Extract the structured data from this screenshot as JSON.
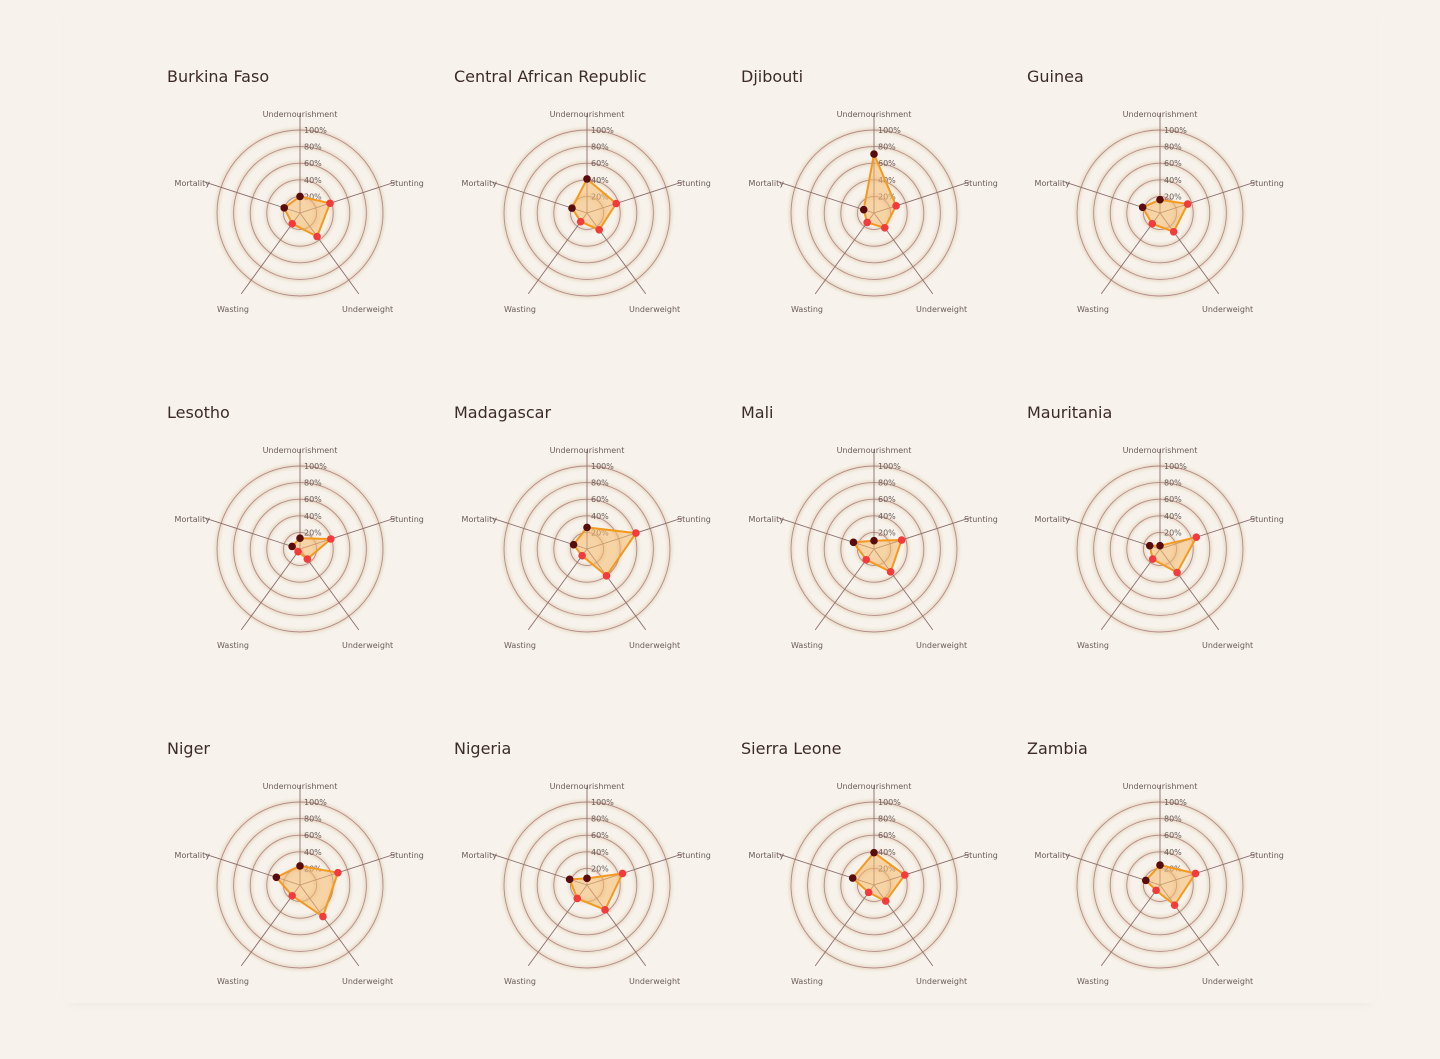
{
  "chart_data": [
    {
      "type": "radar",
      "title": "Burkina Faso",
      "axes": [
        "Undernourishment",
        "Stunting",
        "Underweight",
        "Wasting",
        "Mortality"
      ],
      "ticks": [
        "20%",
        "40%",
        "60%",
        "80%",
        "100%"
      ],
      "rlim": [
        0,
        100
      ],
      "values": [
        20,
        38,
        35,
        16,
        20
      ]
    },
    {
      "type": "radar",
      "title": "Central African Republic",
      "axes": [
        "Undernourishment",
        "Stunting",
        "Underweight",
        "Wasting",
        "Mortality"
      ],
      "ticks": [
        "20%",
        "40%",
        "60%",
        "80%",
        "100%"
      ],
      "rlim": [
        0,
        100
      ],
      "values": [
        41,
        37,
        25,
        13,
        19
      ]
    },
    {
      "type": "radar",
      "title": "Djibouti",
      "axes": [
        "Undernourishment",
        "Stunting",
        "Underweight",
        "Wasting",
        "Mortality"
      ],
      "ticks": [
        "20%",
        "40%",
        "60%",
        "80%",
        "100%"
      ],
      "rlim": [
        0,
        100
      ],
      "values": [
        71,
        28,
        22,
        14,
        13
      ]
    },
    {
      "type": "radar",
      "title": "Guinea",
      "axes": [
        "Undernourishment",
        "Stunting",
        "Underweight",
        "Wasting",
        "Mortality"
      ],
      "ticks": [
        "20%",
        "40%",
        "60%",
        "80%",
        "100%"
      ],
      "rlim": [
        0,
        100
      ],
      "values": [
        16,
        35,
        28,
        16,
        22
      ]
    },
    {
      "type": "radar",
      "title": "Lesotho",
      "axes": [
        "Undernourishment",
        "Stunting",
        "Underweight",
        "Wasting",
        "Mortality"
      ],
      "ticks": [
        "20%",
        "40%",
        "60%",
        "80%",
        "100%"
      ],
      "rlim": [
        0,
        100
      ],
      "values": [
        13,
        39,
        15,
        4,
        10
      ]
    },
    {
      "type": "radar",
      "title": "Madagascar",
      "axes": [
        "Undernourishment",
        "Stunting",
        "Underweight",
        "Wasting",
        "Mortality"
      ],
      "ticks": [
        "20%",
        "40%",
        "60%",
        "80%",
        "100%"
      ],
      "rlim": [
        0,
        100
      ],
      "values": [
        26,
        62,
        40,
        10,
        17
      ]
    },
    {
      "type": "radar",
      "title": "Mali",
      "axes": [
        "Undernourishment",
        "Stunting",
        "Underweight",
        "Wasting",
        "Mortality"
      ],
      "ticks": [
        "20%",
        "40%",
        "60%",
        "80%",
        "100%"
      ],
      "rlim": [
        0,
        100
      ],
      "values": [
        10,
        35,
        34,
        16,
        26
      ]
    },
    {
      "type": "radar",
      "title": "Mauritania",
      "axes": [
        "Undernourishment",
        "Stunting",
        "Underweight",
        "Wasting",
        "Mortality"
      ],
      "ticks": [
        "20%",
        "40%",
        "60%",
        "80%",
        "100%"
      ],
      "rlim": [
        0,
        100
      ],
      "values": [
        4,
        46,
        35,
        15,
        13
      ]
    },
    {
      "type": "radar",
      "title": "Niger",
      "axes": [
        "Undernourishment",
        "Stunting",
        "Underweight",
        "Wasting",
        "Mortality"
      ],
      "ticks": [
        "20%",
        "40%",
        "60%",
        "80%",
        "100%"
      ],
      "rlim": [
        0,
        100
      ],
      "values": [
        23,
        48,
        47,
        16,
        30
      ]
    },
    {
      "type": "radar",
      "title": "Nigeria",
      "axes": [
        "Undernourishment",
        "Stunting",
        "Underweight",
        "Wasting",
        "Mortality"
      ],
      "ticks": [
        "20%",
        "40%",
        "60%",
        "80%",
        "100%"
      ],
      "rlim": [
        0,
        100
      ],
      "values": [
        8,
        45,
        37,
        20,
        22
      ]
    },
    {
      "type": "radar",
      "title": "Sierra Leone",
      "axes": [
        "Undernourishment",
        "Stunting",
        "Underweight",
        "Wasting",
        "Mortality"
      ],
      "ticks": [
        "20%",
        "40%",
        "60%",
        "80%",
        "100%"
      ],
      "rlim": [
        0,
        100
      ],
      "values": [
        39,
        39,
        24,
        11,
        27
      ]
    },
    {
      "type": "radar",
      "title": "Zambia",
      "axes": [
        "Undernourishment",
        "Stunting",
        "Underweight",
        "Wasting",
        "Mortality"
      ],
      "ticks": [
        "20%",
        "40%",
        "60%",
        "80%",
        "100%"
      ],
      "rlim": [
        0,
        100
      ],
      "values": [
        24,
        45,
        30,
        8,
        18
      ]
    }
  ],
  "colors": {
    "polygon_stroke": "#f39a1e",
    "polygon_fill": "#f5b96b",
    "marker_dark": "#5a0b0b",
    "marker_red": "#f33b3b",
    "grid_ring": "#b48a8a",
    "axis_line": "#8b6d6d",
    "title_text": "#3c2a2a",
    "background": "#f7f3ec"
  },
  "marker_colors": [
    "dark",
    "red",
    "red",
    "red",
    "dark"
  ]
}
